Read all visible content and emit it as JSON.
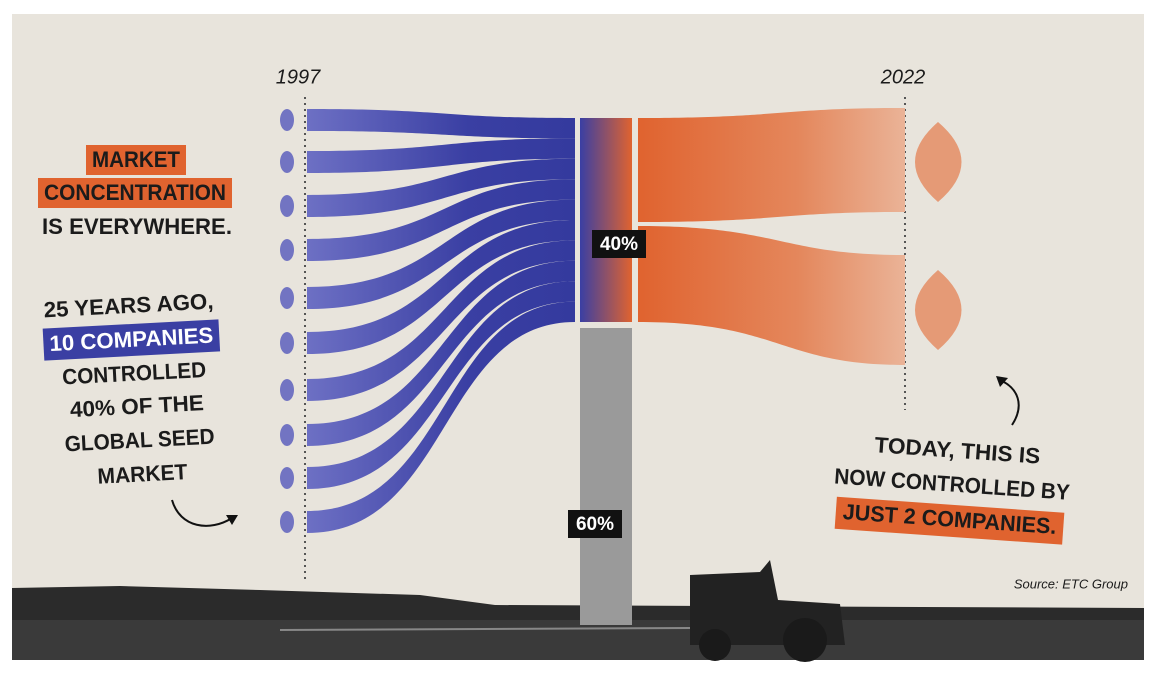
{
  "years": {
    "start": "1997",
    "end": "2022"
  },
  "headline": [
    "MARKET",
    "CONCENTRATION",
    "IS EVERYWHERE."
  ],
  "left_note": [
    "25 YEARS AGO,",
    "10 COMPANIES",
    "CONTROLLED",
    "40% OF THE",
    "GLOBAL SEED",
    "MARKET"
  ],
  "right_note": [
    "TODAY, THIS IS",
    "NOW CONTROLLED BY",
    "JUST 2 COMPANIES."
  ],
  "shares": [
    "40%",
    "60%"
  ],
  "source": "Source: ETC Group"
}
